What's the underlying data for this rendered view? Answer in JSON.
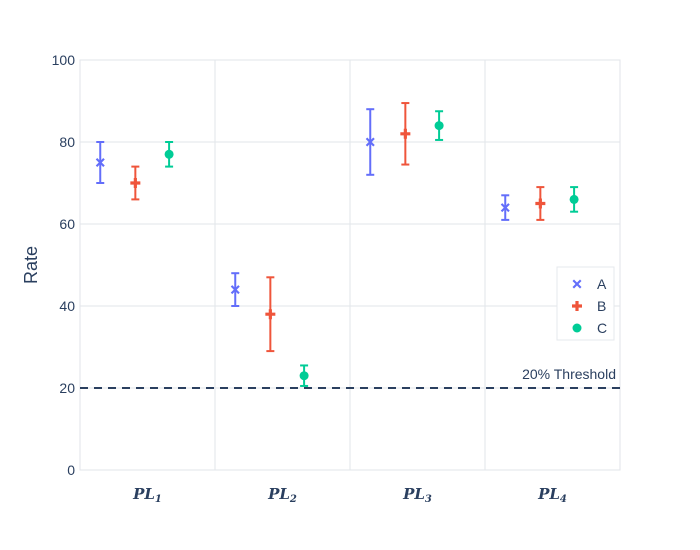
{
  "chart_data": {
    "type": "scatter",
    "title": "",
    "xlabel": "",
    "ylabel": "Rate",
    "ylim": [
      0,
      100
    ],
    "yticks": [
      0,
      20,
      40,
      60,
      80,
      100
    ],
    "grid": true,
    "legend_position": "right",
    "categories": [
      {
        "main": "PL",
        "sub": "1"
      },
      {
        "main": "PL",
        "sub": "2"
      },
      {
        "main": "PL",
        "sub": "3"
      },
      {
        "main": "PL",
        "sub": "4"
      }
    ],
    "series": [
      {
        "name": "A",
        "color": "#636efa",
        "symbol": "x",
        "values": [
          75,
          44,
          80,
          64
        ],
        "error_upper": [
          5,
          4,
          8,
          3
        ],
        "error_lower": [
          5,
          4,
          8,
          3
        ]
      },
      {
        "name": "B",
        "color": "#ef553b",
        "symbol": "cross",
        "values": [
          70,
          38,
          82,
          65
        ],
        "error_upper": [
          4,
          9,
          7.5,
          4
        ],
        "error_lower": [
          4,
          9,
          7.5,
          4
        ]
      },
      {
        "name": "C",
        "color": "#00cc96",
        "symbol": "circle",
        "values": [
          77,
          23,
          84,
          66
        ],
        "error_upper": [
          3,
          2.5,
          3.5,
          3
        ],
        "error_lower": [
          3,
          2.5,
          3.5,
          3
        ]
      }
    ],
    "threshold": {
      "value": 20,
      "label": "20% Threshold",
      "color": "#2a3f5f",
      "style": "dashed"
    }
  }
}
